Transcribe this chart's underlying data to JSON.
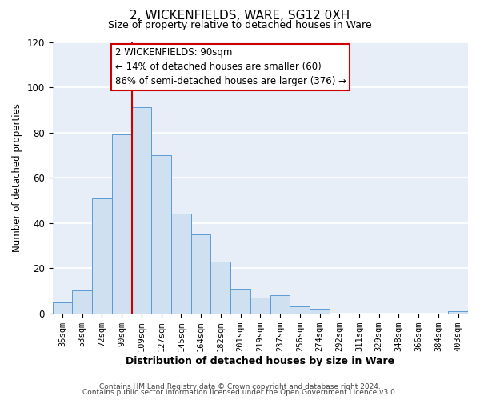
{
  "title": "2, WICKENFIELDS, WARE, SG12 0XH",
  "subtitle": "Size of property relative to detached houses in Ware",
  "xlabel": "Distribution of detached houses by size in Ware",
  "ylabel": "Number of detached properties",
  "bar_labels": [
    "35sqm",
    "53sqm",
    "72sqm",
    "90sqm",
    "109sqm",
    "127sqm",
    "145sqm",
    "164sqm",
    "182sqm",
    "201sqm",
    "219sqm",
    "237sqm",
    "256sqm",
    "274sqm",
    "292sqm",
    "311sqm",
    "329sqm",
    "348sqm",
    "366sqm",
    "384sqm",
    "403sqm"
  ],
  "bar_values": [
    5,
    10,
    51,
    79,
    91,
    70,
    44,
    35,
    23,
    11,
    7,
    8,
    3,
    2,
    0,
    0,
    0,
    0,
    0,
    0,
    1
  ],
  "bar_color": "#cfe0f0",
  "bar_edge_color": "#5b9bd5",
  "vline_x_index": 3,
  "vline_color": "#cc0000",
  "annotation_text": "2 WICKENFIELDS: 90sqm\n← 14% of detached houses are smaller (60)\n86% of semi-detached houses are larger (376) →",
  "annotation_box_edgecolor": "#cc0000",
  "annotation_box_facecolor": "white",
  "ylim": [
    0,
    120
  ],
  "yticks": [
    0,
    20,
    40,
    60,
    80,
    100,
    120
  ],
  "footer_line1": "Contains HM Land Registry data © Crown copyright and database right 2024.",
  "footer_line2": "Contains public sector information licensed under the Open Government Licence v3.0.",
  "plot_bg_color": "#e8eef7",
  "fig_bg_color": "#ffffff",
  "grid_color": "#ffffff"
}
